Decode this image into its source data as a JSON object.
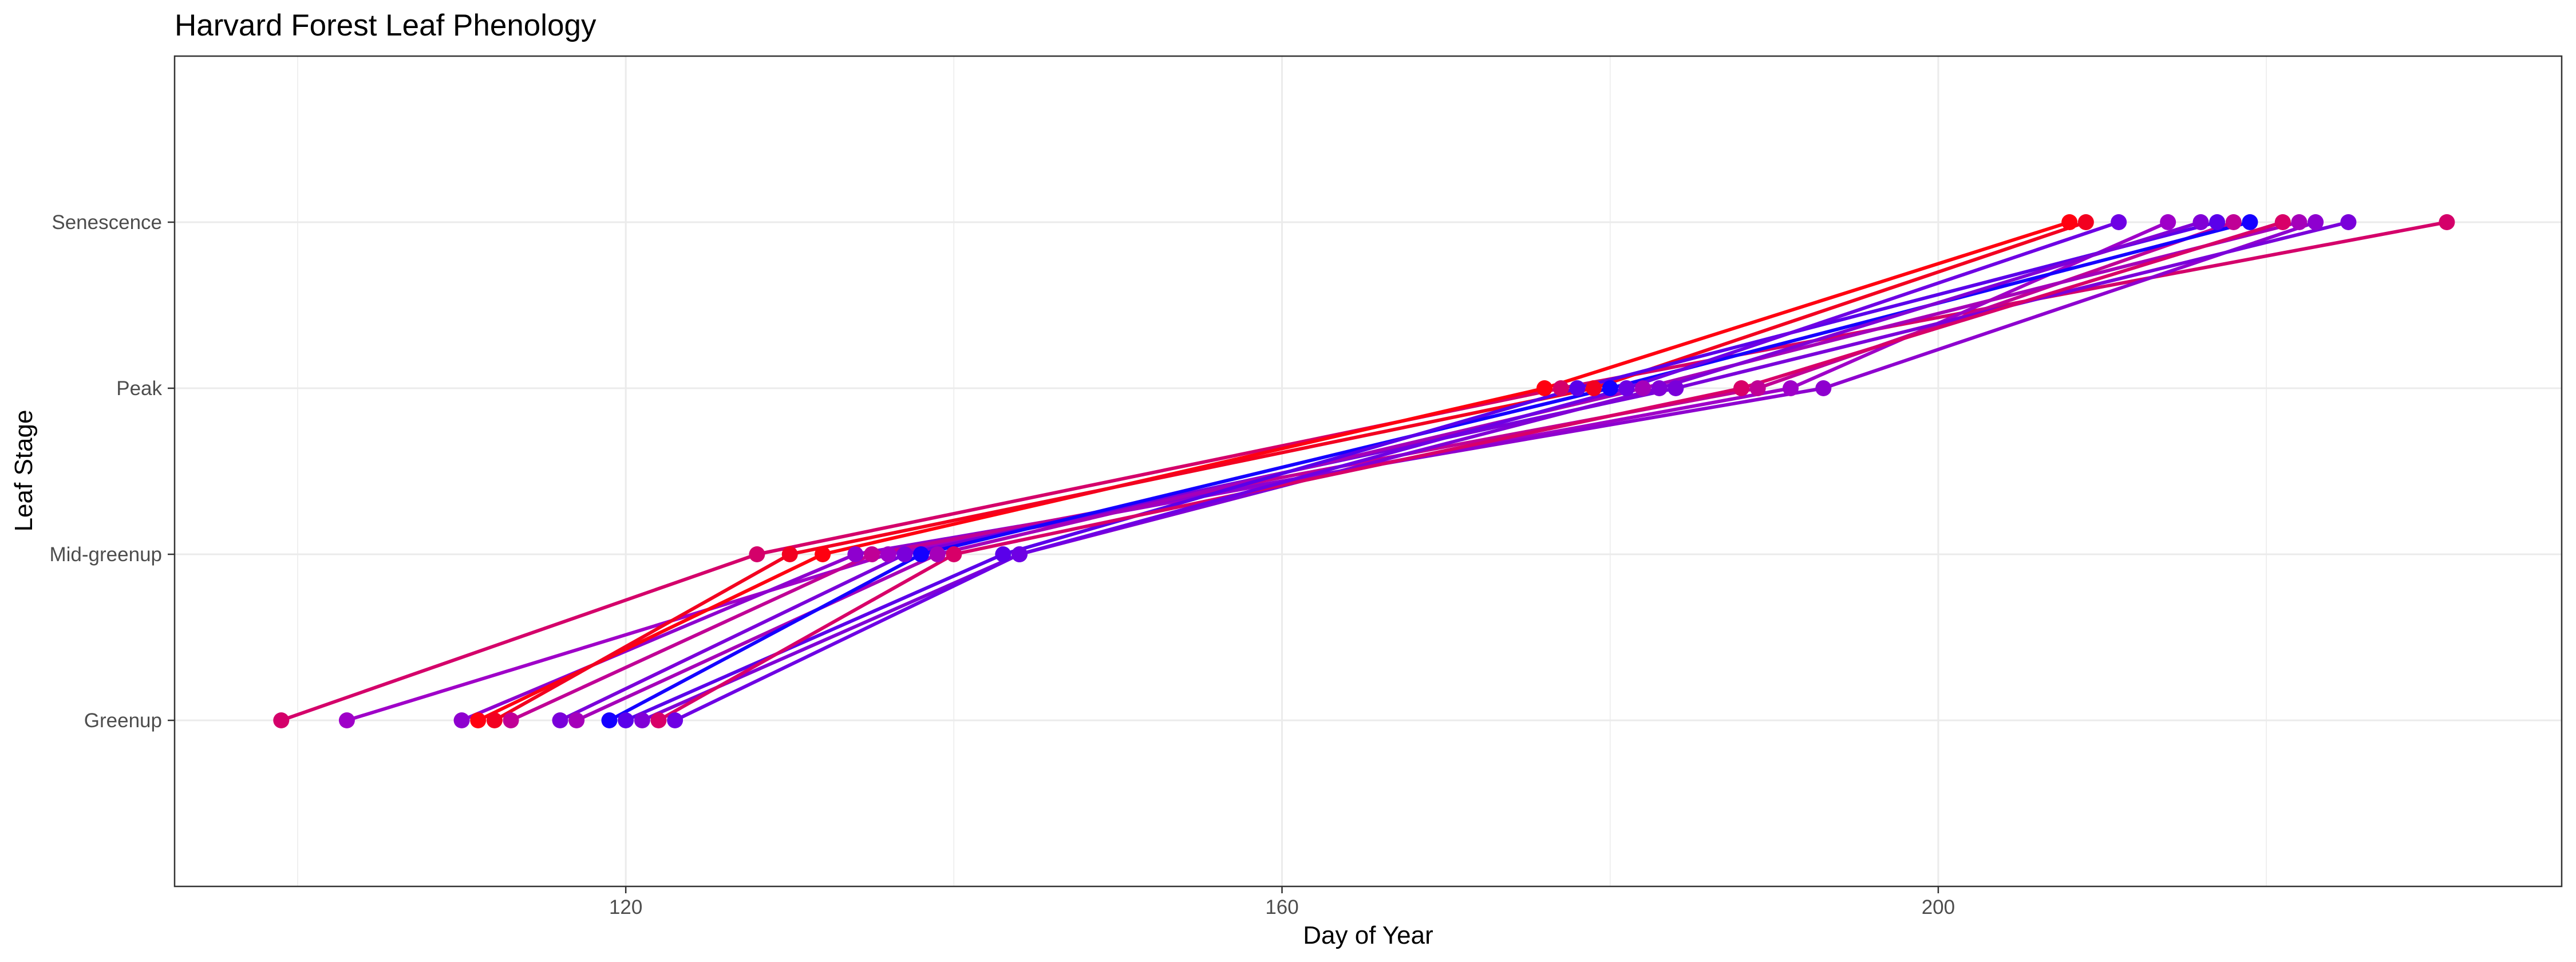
{
  "chart_data": {
    "type": "line",
    "title": "Harvard Forest Leaf Phenology",
    "xlabel": "Day of Year",
    "ylabel": "Leaf Stage",
    "xlim": [
      92.5,
      238
    ],
    "x_ticks": [
      120,
      160,
      200
    ],
    "x_minor_ticks": [
      100,
      140,
      180,
      220
    ],
    "y_categories": [
      "Greenup",
      "Mid-greenup",
      "Peak",
      "Senescence"
    ],
    "grid": true,
    "legend": "none",
    "colors": {
      "early": "#ff0000",
      "middle": "#9900cc",
      "late": "#0000ff",
      "grid": "#ebebeb",
      "axis_tick": "#333333"
    },
    "series": [
      {
        "color": "#d4006a",
        "values": [
          99,
          128,
          177,
          231
        ]
      },
      {
        "color": "#9f00c8",
        "values": [
          103,
          136,
          191,
          214
        ]
      },
      {
        "color": "#8e00cf",
        "values": [
          110,
          134,
          193,
          223
        ]
      },
      {
        "color": "#ff0010",
        "values": [
          111,
          132,
          176,
          208
        ]
      },
      {
        "color": "#f20020",
        "values": [
          112,
          130,
          179,
          209
        ]
      },
      {
        "color": "#c00096",
        "values": [
          113,
          135,
          189,
          218
        ]
      },
      {
        "color": "#7a00da",
        "values": [
          116,
          137,
          184,
          225
        ]
      },
      {
        "color": "#a500b9",
        "values": [
          117,
          139,
          182,
          222
        ]
      },
      {
        "color": "#1500ff",
        "values": [
          119,
          138,
          180,
          219
        ]
      },
      {
        "color": "#5a00ea",
        "values": [
          120,
          143,
          178,
          217
        ]
      },
      {
        "color": "#8100d6",
        "values": [
          121,
          144,
          183,
          216
        ]
      },
      {
        "color": "#d80068",
        "values": [
          122,
          140,
          188,
          221
        ]
      },
      {
        "color": "#6e00e4",
        "values": [
          123,
          144,
          181,
          211
        ]
      }
    ]
  }
}
